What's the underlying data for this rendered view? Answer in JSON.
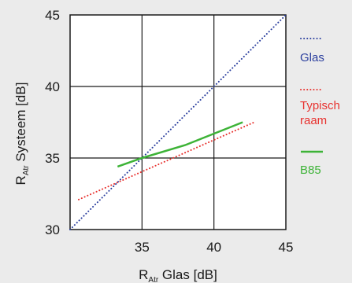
{
  "chart_data": {
    "type": "line",
    "xlabel": {
      "main": "R",
      "sub": "Atr",
      "rest": " Glas [dB]"
    },
    "ylabel": {
      "main": "R",
      "sub": "Atr",
      "rest": " Systeem [dB]"
    },
    "xlim": [
      30,
      45
    ],
    "ylim": [
      30,
      45
    ],
    "xticks": [
      "35",
      "40",
      "45"
    ],
    "yticks": [
      "30",
      "35",
      "40",
      "45"
    ],
    "grid": true,
    "legend_position": "right",
    "series": [
      {
        "name": "Glas",
        "legend_lines": [
          "Glas"
        ],
        "color": "#2b3f9e",
        "style": "dotted",
        "x": [
          30,
          45
        ],
        "y": [
          30,
          45
        ]
      },
      {
        "name": "Typisch raam",
        "legend_lines": [
          "Typisch",
          "raam"
        ],
        "color": "#e8322f",
        "style": "dotted",
        "x": [
          30.6,
          42.8
        ],
        "y": [
          32.1,
          37.5
        ]
      },
      {
        "name": "B85",
        "legend_lines": [
          "B85"
        ],
        "color": "#3db337",
        "style": "solid",
        "x": [
          33.3,
          35,
          38,
          42
        ],
        "y": [
          34.4,
          35,
          35.9,
          37.5
        ]
      }
    ]
  }
}
